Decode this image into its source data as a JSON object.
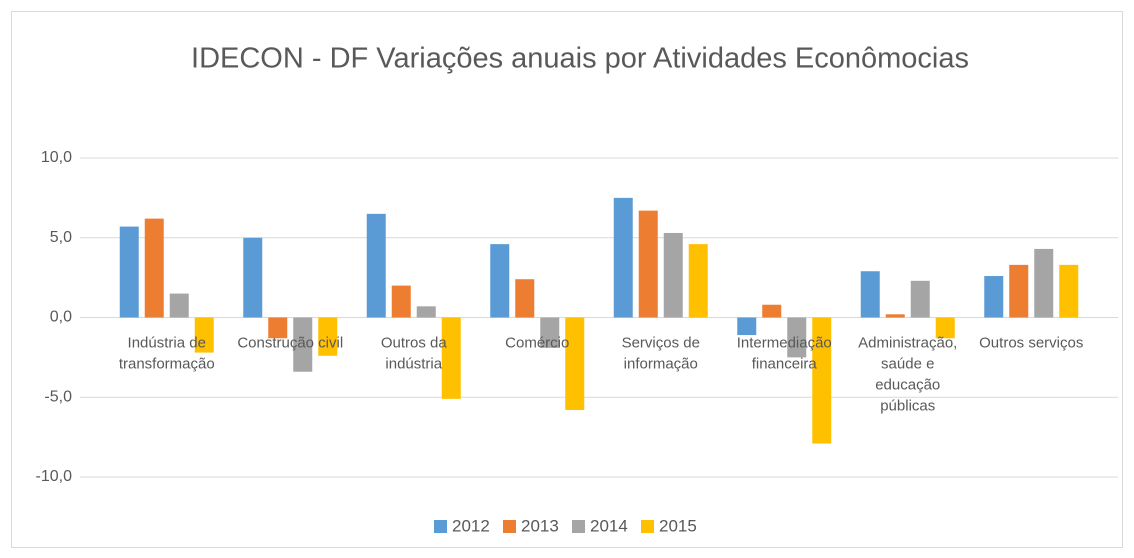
{
  "chart_data": {
    "type": "bar",
    "title": "IDECON - DF Variações anuais por Atividades Econômocias",
    "categories": [
      "Indústria de transformação",
      "Construção civil",
      "Outros da indústria",
      "Comércio",
      "Serviços de informação",
      "Intermediação financeira",
      "Administração, saúde e educação públicas",
      "Outros serviços"
    ],
    "series": [
      {
        "name": "2012",
        "color": "#5b9bd5",
        "values": [
          5.7,
          5.0,
          6.5,
          4.6,
          7.5,
          -1.1,
          2.9,
          2.6
        ]
      },
      {
        "name": "2013",
        "color": "#ed7d31",
        "values": [
          6.2,
          -1.3,
          2.0,
          2.4,
          6.7,
          0.8,
          0.2,
          3.3
        ]
      },
      {
        "name": "2014",
        "color": "#a5a5a5",
        "values": [
          1.5,
          -3.4,
          0.7,
          -1.9,
          5.3,
          -2.5,
          2.3,
          4.3
        ]
      },
      {
        "name": "2015",
        "color": "#ffc000",
        "values": [
          -2.2,
          -2.4,
          -5.1,
          -5.8,
          4.6,
          -7.9,
          -1.3,
          3.3
        ]
      }
    ],
    "ylim": [
      -10,
      10
    ],
    "yticks": [
      {
        "value": -10,
        "label": "-10,0"
      },
      {
        "value": -5,
        "label": "-5,0"
      },
      {
        "value": 0,
        "label": "0,0"
      },
      {
        "value": 5,
        "label": "5,0"
      },
      {
        "value": 10,
        "label": "10,0"
      }
    ],
    "grid": true,
    "legend": "bottom"
  }
}
